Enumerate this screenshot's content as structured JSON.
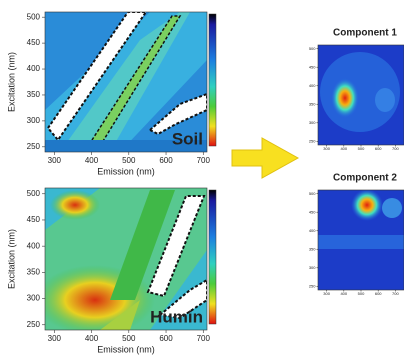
{
  "chart_data": [
    {
      "type": "contour",
      "xlabel": "Emission (nm)",
      "ylabel": "Excitation (nm)",
      "annotation": "Soil",
      "xlim": [
        275,
        710
      ],
      "ylim": [
        240,
        510
      ],
      "xticks": [
        300,
        400,
        500,
        600,
        700
      ],
      "yticks": [
        250,
        300,
        350,
        400,
        450,
        500
      ]
    },
    {
      "type": "contour",
      "xlabel": "Emission (nm)",
      "ylabel": "Excitation (nm)",
      "annotation": "Humin",
      "xlim": [
        275,
        710
      ],
      "ylim": [
        240,
        511
      ],
      "xticks": [
        300,
        400,
        500,
        600,
        700
      ],
      "yticks": [
        250,
        300,
        350,
        400,
        450,
        500
      ]
    },
    {
      "type": "heatmap",
      "title": "Component 1",
      "xlim": [
        250,
        750
      ],
      "ylim": [
        240,
        510
      ],
      "xticks": [
        300,
        400,
        500,
        600,
        700
      ],
      "yticks": [
        250,
        300,
        350,
        400,
        450,
        500
      ]
    },
    {
      "type": "heatmap",
      "title": "Component 2",
      "xlim": [
        250,
        750
      ],
      "ylim": [
        240,
        510
      ],
      "xticks": [
        300,
        400,
        500,
        600,
        700
      ],
      "yticks": [
        250,
        300,
        350,
        400,
        450,
        500
      ]
    }
  ]
}
